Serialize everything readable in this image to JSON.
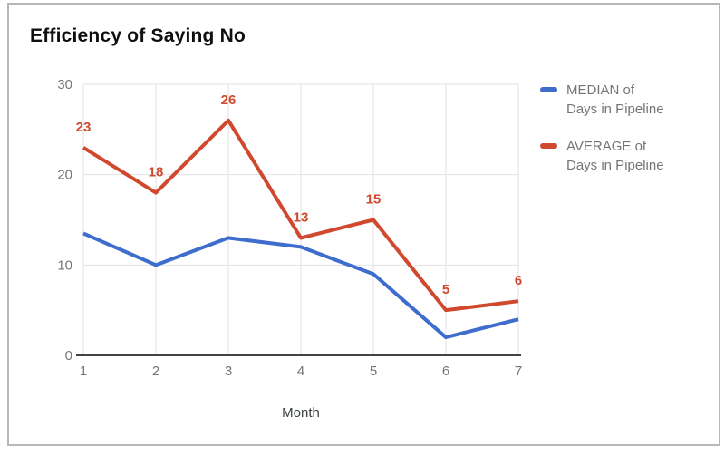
{
  "chart_data": {
    "type": "line",
    "title": "Efficiency of Saying No",
    "xlabel": "Month",
    "ylabel": "",
    "x": [
      1,
      2,
      3,
      4,
      5,
      6,
      7
    ],
    "x_tick_labels": [
      "1",
      "2",
      "3",
      "4",
      "5",
      "6",
      "7"
    ],
    "y_ticks": [
      0,
      10,
      20,
      30
    ],
    "ylim": [
      0,
      30
    ],
    "grid": true,
    "legend_position": "right",
    "series": [
      {
        "name": "MEDIAN of Days in Pipeline",
        "color": "#3e6dcd",
        "values": [
          13.5,
          10,
          13,
          12,
          9,
          2,
          4
        ],
        "show_labels": false
      },
      {
        "name": "AVERAGE of Days in Pipeline",
        "color": "#d0492e",
        "values": [
          23,
          18,
          26,
          13,
          15,
          5,
          6
        ],
        "data_labels": [
          "23",
          "18",
          "26",
          "13",
          "15",
          "5",
          "6"
        ],
        "show_labels": true
      }
    ]
  },
  "styles": {
    "grid_color": "#e2e2e2",
    "axis_line_color": "#424242",
    "tick_label_color": "#757575",
    "xlabel_color": "#3c4043",
    "legend_text_color": "#757575",
    "frame_border_color": "#b7b7b7",
    "title_color": "#0f0f0f",
    "background": "#ffffff"
  }
}
